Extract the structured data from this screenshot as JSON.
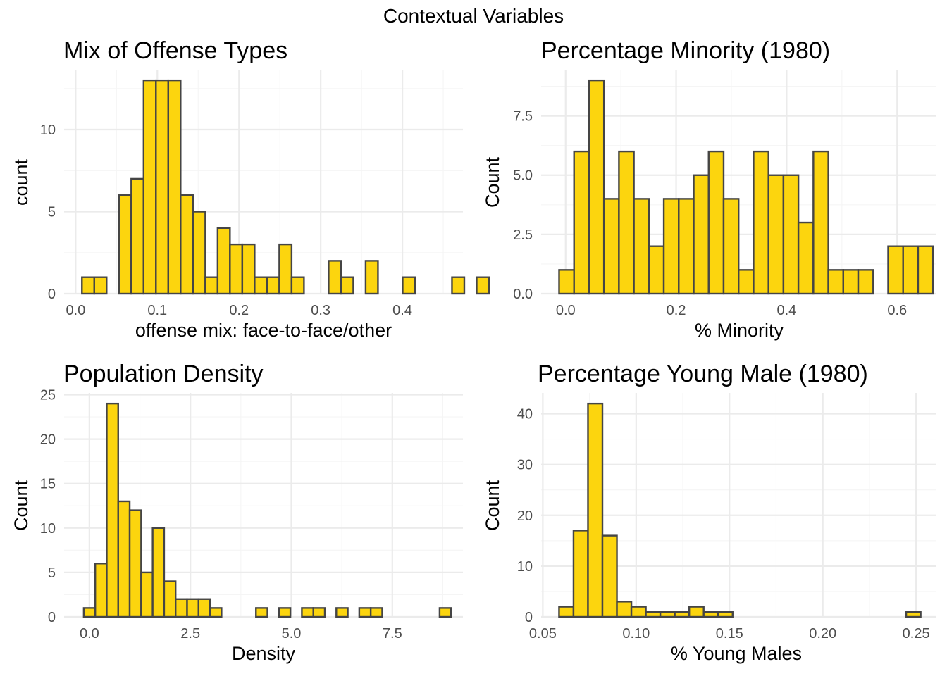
{
  "figure_title": "Contextual Variables",
  "colors": {
    "bar_fill": "#FCD50E",
    "bar_stroke": "#454545",
    "grid_major": "#EBEBEB",
    "grid_minor": "#F5F5F5"
  },
  "chart_data": [
    {
      "type": "bar",
      "title": "Mix of Offense Types",
      "xlabel": "offense mix: face-to-face/other",
      "ylabel": "count",
      "xlim": [
        -0.0141,
        0.4741
      ],
      "ylim": [
        0,
        13.65
      ],
      "x_ticks": [
        0.0,
        0.1,
        0.2,
        0.3,
        0.4
      ],
      "x_tick_labels": [
        "0.0",
        "0.1",
        "0.2",
        "0.3",
        "0.4"
      ],
      "y_ticks": [
        0,
        5,
        10
      ],
      "y_tick_labels": [
        "0",
        "5",
        "10"
      ],
      "bin_start": 0.0077,
      "bin_width": 0.0151,
      "counts": [
        1,
        1,
        0,
        6,
        7,
        13,
        13,
        13,
        6,
        5,
        1,
        4,
        3,
        3,
        1,
        1,
        3,
        1,
        0,
        0,
        2,
        1,
        0,
        2,
        0,
        0,
        1,
        0,
        0,
        0,
        1,
        0,
        1
      ],
      "grid": true
    },
    {
      "type": "bar",
      "title": "Percentage Minority (1980)",
      "xlabel": "% Minority",
      "ylabel": "Count",
      "xlim": [
        -0.0443,
        0.6711
      ],
      "ylim": [
        0,
        9.45
      ],
      "x_ticks": [
        0.0,
        0.2,
        0.4,
        0.6
      ],
      "x_tick_labels": [
        "0.0",
        "0.2",
        "0.4",
        "0.6"
      ],
      "y_ticks": [
        0,
        2.5,
        5,
        7.5
      ],
      "y_tick_labels": [
        "0.0",
        "2.5",
        "5.0",
        "7.5"
      ],
      "bin_start": -0.0118,
      "bin_width": 0.02707,
      "counts": [
        1,
        6,
        9,
        4,
        6,
        4,
        2,
        4,
        4,
        5,
        6,
        4,
        1,
        6,
        5,
        5,
        3,
        6,
        1,
        1,
        1,
        0,
        2,
        2,
        2
      ],
      "grid": true
    },
    {
      "type": "bar",
      "title": "Population Density",
      "xlabel": "Density",
      "ylabel": "Count",
      "xlim": [
        -0.626,
        9.248
      ],
      "ylim": [
        0,
        25.2
      ],
      "x_ticks": [
        0.0,
        2.5,
        5.0,
        7.5
      ],
      "x_tick_labels": [
        "0.0",
        "2.5",
        "5.0",
        "7.5"
      ],
      "y_ticks": [
        0,
        5,
        10,
        15,
        20,
        25
      ],
      "y_tick_labels": [
        "0",
        "5",
        "10",
        "15",
        "20",
        "25"
      ],
      "bin_start": -0.1395,
      "bin_width": 0.2842,
      "counts": [
        1,
        6,
        24,
        13,
        12,
        5,
        10,
        4,
        2,
        2,
        2,
        1,
        0,
        0,
        0,
        1,
        0,
        1,
        0,
        1,
        1,
        0,
        1,
        0,
        1,
        1,
        0,
        0,
        0,
        0,
        0,
        1
      ],
      "grid": true
    },
    {
      "type": "bar",
      "title": "Percentage Young Male (1980)",
      "xlabel": "% Young Males",
      "ylabel": "Count",
      "xlim": [
        0.0491,
        0.2609
      ],
      "ylim": [
        0,
        44.1
      ],
      "x_ticks": [
        0.05,
        0.1,
        0.15,
        0.2,
        0.25
      ],
      "x_tick_labels": [
        "0.05",
        "0.10",
        "0.15",
        "0.20",
        "0.25"
      ],
      "y_ticks": [
        0,
        10,
        20,
        30,
        40
      ],
      "y_tick_labels": [
        "0",
        "10",
        "20",
        "30",
        "40"
      ],
      "bin_start": 0.0587,
      "bin_width": 0.00775,
      "counts": [
        2,
        17,
        42,
        16,
        3,
        2,
        1,
        1,
        1,
        2,
        1,
        1,
        0,
        0,
        0,
        0,
        0,
        0,
        0,
        0,
        0,
        0,
        0,
        0,
        1
      ],
      "grid": true
    }
  ]
}
